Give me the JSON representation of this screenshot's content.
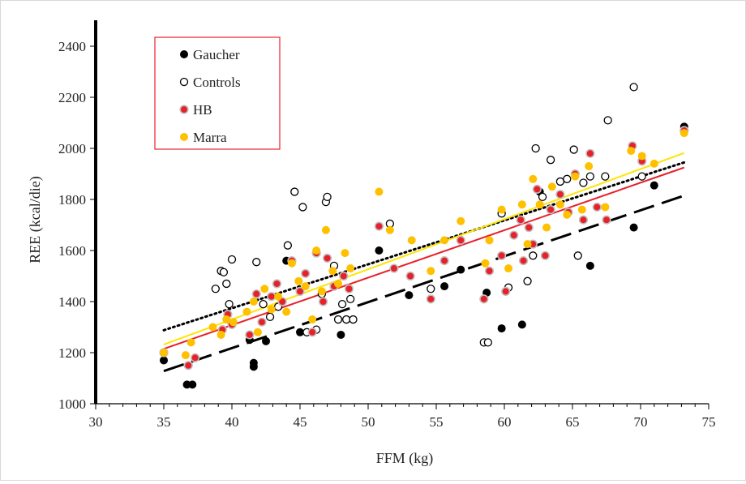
{
  "chart_data": {
    "type": "scatter",
    "title": "",
    "xlabel": "FFM (kg)",
    "ylabel": "REE (kcal/die)",
    "xlim": [
      30,
      75
    ],
    "ylim": [
      1000,
      2400
    ],
    "xticks": [
      "30",
      "35",
      "40",
      "45",
      "50",
      "55",
      "60",
      "65",
      "70",
      "75"
    ],
    "yticks": [
      "1000",
      "1200",
      "1400",
      "1600",
      "1800",
      "2000",
      "2200",
      "2400"
    ],
    "grid": false,
    "legend_position": "top-left",
    "series": [
      {
        "name": "Gaucher",
        "marker": "filled-circle",
        "color": "#000000",
        "points": [
          [
            35,
            1170
          ],
          [
            36.7,
            1075
          ],
          [
            37.1,
            1075
          ],
          [
            41.3,
            1250
          ],
          [
            41.6,
            1160
          ],
          [
            41.6,
            1145
          ],
          [
            42.5,
            1245
          ],
          [
            44,
            1560
          ],
          [
            45,
            1280
          ],
          [
            48,
            1270
          ],
          [
            50.8,
            1600
          ],
          [
            53,
            1425
          ],
          [
            55.6,
            1460
          ],
          [
            56.8,
            1525
          ],
          [
            58.7,
            1435
          ],
          [
            59.8,
            1295
          ],
          [
            61.3,
            1310
          ],
          [
            62.6,
            1830
          ],
          [
            66.3,
            1540
          ],
          [
            69.5,
            1690
          ],
          [
            71,
            1855
          ],
          [
            73.2,
            2085
          ]
        ]
      },
      {
        "name": "Controls",
        "marker": "open-circle",
        "color": "#000000",
        "points": [
          [
            38.8,
            1450
          ],
          [
            39.2,
            1520
          ],
          [
            39.4,
            1515
          ],
          [
            39.6,
            1470
          ],
          [
            39.8,
            1390
          ],
          [
            40,
            1565
          ],
          [
            41.8,
            1555
          ],
          [
            42.3,
            1390
          ],
          [
            42.8,
            1340
          ],
          [
            43.4,
            1380
          ],
          [
            44.1,
            1620
          ],
          [
            44.6,
            1830
          ],
          [
            45.2,
            1770
          ],
          [
            45.5,
            1280
          ],
          [
            46.2,
            1290
          ],
          [
            46.6,
            1430
          ],
          [
            46.9,
            1790
          ],
          [
            47,
            1810
          ],
          [
            47.5,
            1540
          ],
          [
            47.8,
            1330
          ],
          [
            48.1,
            1390
          ],
          [
            48.4,
            1330
          ],
          [
            48.7,
            1410
          ],
          [
            48.9,
            1330
          ],
          [
            51.6,
            1705
          ],
          [
            54.6,
            1450
          ],
          [
            58.5,
            1240
          ],
          [
            58.8,
            1240
          ],
          [
            59.8,
            1745
          ],
          [
            60.3,
            1455
          ],
          [
            61.7,
            1480
          ],
          [
            62.1,
            1580
          ],
          [
            62.3,
            2000
          ],
          [
            62.8,
            1810
          ],
          [
            63.4,
            1955
          ],
          [
            64.1,
            1870
          ],
          [
            64.6,
            1880
          ],
          [
            65.1,
            1995
          ],
          [
            65.4,
            1580
          ],
          [
            65.8,
            1865
          ],
          [
            66.3,
            1890
          ],
          [
            67.4,
            1890
          ],
          [
            67.6,
            2110
          ],
          [
            69.5,
            2240
          ],
          [
            70.1,
            1890
          ]
        ]
      },
      {
        "name": "HB",
        "marker": "red-core-circle",
        "color": "#e8202a",
        "points": [
          [
            35,
            1200
          ],
          [
            36.8,
            1150
          ],
          [
            37.3,
            1180
          ],
          [
            39.3,
            1290
          ],
          [
            39.7,
            1350
          ],
          [
            40,
            1310
          ],
          [
            41.3,
            1270
          ],
          [
            41.8,
            1430
          ],
          [
            42.2,
            1320
          ],
          [
            42.9,
            1420
          ],
          [
            43.3,
            1470
          ],
          [
            43.7,
            1400
          ],
          [
            44.4,
            1560
          ],
          [
            45,
            1440
          ],
          [
            45.4,
            1510
          ],
          [
            45.9,
            1280
          ],
          [
            46.2,
            1590
          ],
          [
            46.7,
            1400
          ],
          [
            47,
            1570
          ],
          [
            47.5,
            1460
          ],
          [
            48.2,
            1500
          ],
          [
            48.6,
            1450
          ],
          [
            50.8,
            1695
          ],
          [
            51.9,
            1530
          ],
          [
            53.1,
            1500
          ],
          [
            54.6,
            1410
          ],
          [
            55.6,
            1560
          ],
          [
            56.8,
            1640
          ],
          [
            58.5,
            1410
          ],
          [
            58.9,
            1520
          ],
          [
            59.8,
            1580
          ],
          [
            60.1,
            1440
          ],
          [
            60.7,
            1660
          ],
          [
            61.2,
            1720
          ],
          [
            61.4,
            1560
          ],
          [
            61.8,
            1690
          ],
          [
            62.1,
            1625
          ],
          [
            62.4,
            1840
          ],
          [
            63,
            1580
          ],
          [
            63.4,
            1760
          ],
          [
            64.1,
            1820
          ],
          [
            64.7,
            1750
          ],
          [
            65.2,
            1900
          ],
          [
            65.8,
            1720
          ],
          [
            66.3,
            1980
          ],
          [
            66.8,
            1770
          ],
          [
            67.5,
            1720
          ],
          [
            69.4,
            2010
          ],
          [
            70.1,
            1950
          ],
          [
            73.2,
            2070
          ]
        ]
      },
      {
        "name": "Marra",
        "marker": "filled-circle",
        "color": "#ffc000",
        "points": [
          [
            35,
            1200
          ],
          [
            36.6,
            1190
          ],
          [
            37,
            1240
          ],
          [
            38.6,
            1300
          ],
          [
            39.2,
            1270
          ],
          [
            39.6,
            1330
          ],
          [
            40.1,
            1320
          ],
          [
            41.1,
            1360
          ],
          [
            41.6,
            1400
          ],
          [
            41.9,
            1280
          ],
          [
            42.4,
            1450
          ],
          [
            42.9,
            1370
          ],
          [
            43.4,
            1420
          ],
          [
            44,
            1360
          ],
          [
            44.4,
            1550
          ],
          [
            44.9,
            1480
          ],
          [
            45.4,
            1460
          ],
          [
            45.9,
            1330
          ],
          [
            46.2,
            1600
          ],
          [
            46.6,
            1440
          ],
          [
            46.9,
            1680
          ],
          [
            47.4,
            1520
          ],
          [
            47.8,
            1470
          ],
          [
            48.3,
            1590
          ],
          [
            48.7,
            1530
          ],
          [
            50.8,
            1830
          ],
          [
            51.6,
            1680
          ],
          [
            53.2,
            1640
          ],
          [
            54.6,
            1520
          ],
          [
            55.6,
            1640
          ],
          [
            56.8,
            1715
          ],
          [
            58.6,
            1550
          ],
          [
            58.9,
            1640
          ],
          [
            59.8,
            1760
          ],
          [
            60.3,
            1530
          ],
          [
            61.3,
            1780
          ],
          [
            61.7,
            1625
          ],
          [
            62.1,
            1880
          ],
          [
            62.6,
            1780
          ],
          [
            63.1,
            1690
          ],
          [
            63.5,
            1850
          ],
          [
            64.1,
            1780
          ],
          [
            64.6,
            1740
          ],
          [
            65.2,
            1890
          ],
          [
            65.7,
            1760
          ],
          [
            66.2,
            1930
          ],
          [
            67.4,
            1770
          ],
          [
            69.3,
            1990
          ],
          [
            70.1,
            1970
          ],
          [
            71,
            1940
          ],
          [
            73.2,
            2060
          ]
        ]
      }
    ],
    "trendlines": [
      {
        "series": "Gaucher",
        "style": "long-dash",
        "color": "#000000",
        "x": [
          35,
          73.2
        ],
        "y": [
          1128,
          1815
        ]
      },
      {
        "series": "Controls",
        "style": "dotted",
        "color": "#000000",
        "x": [
          35,
          73.2
        ],
        "y": [
          1288,
          1945
        ]
      },
      {
        "series": "HB",
        "style": "solid",
        "color": "#e8202a",
        "x": [
          35,
          73.2
        ],
        "y": [
          1215,
          1925
        ]
      },
      {
        "series": "Marra",
        "style": "solid",
        "color": "#ffe500",
        "x": [
          35,
          73.2
        ],
        "y": [
          1232,
          1982
        ]
      }
    ]
  }
}
